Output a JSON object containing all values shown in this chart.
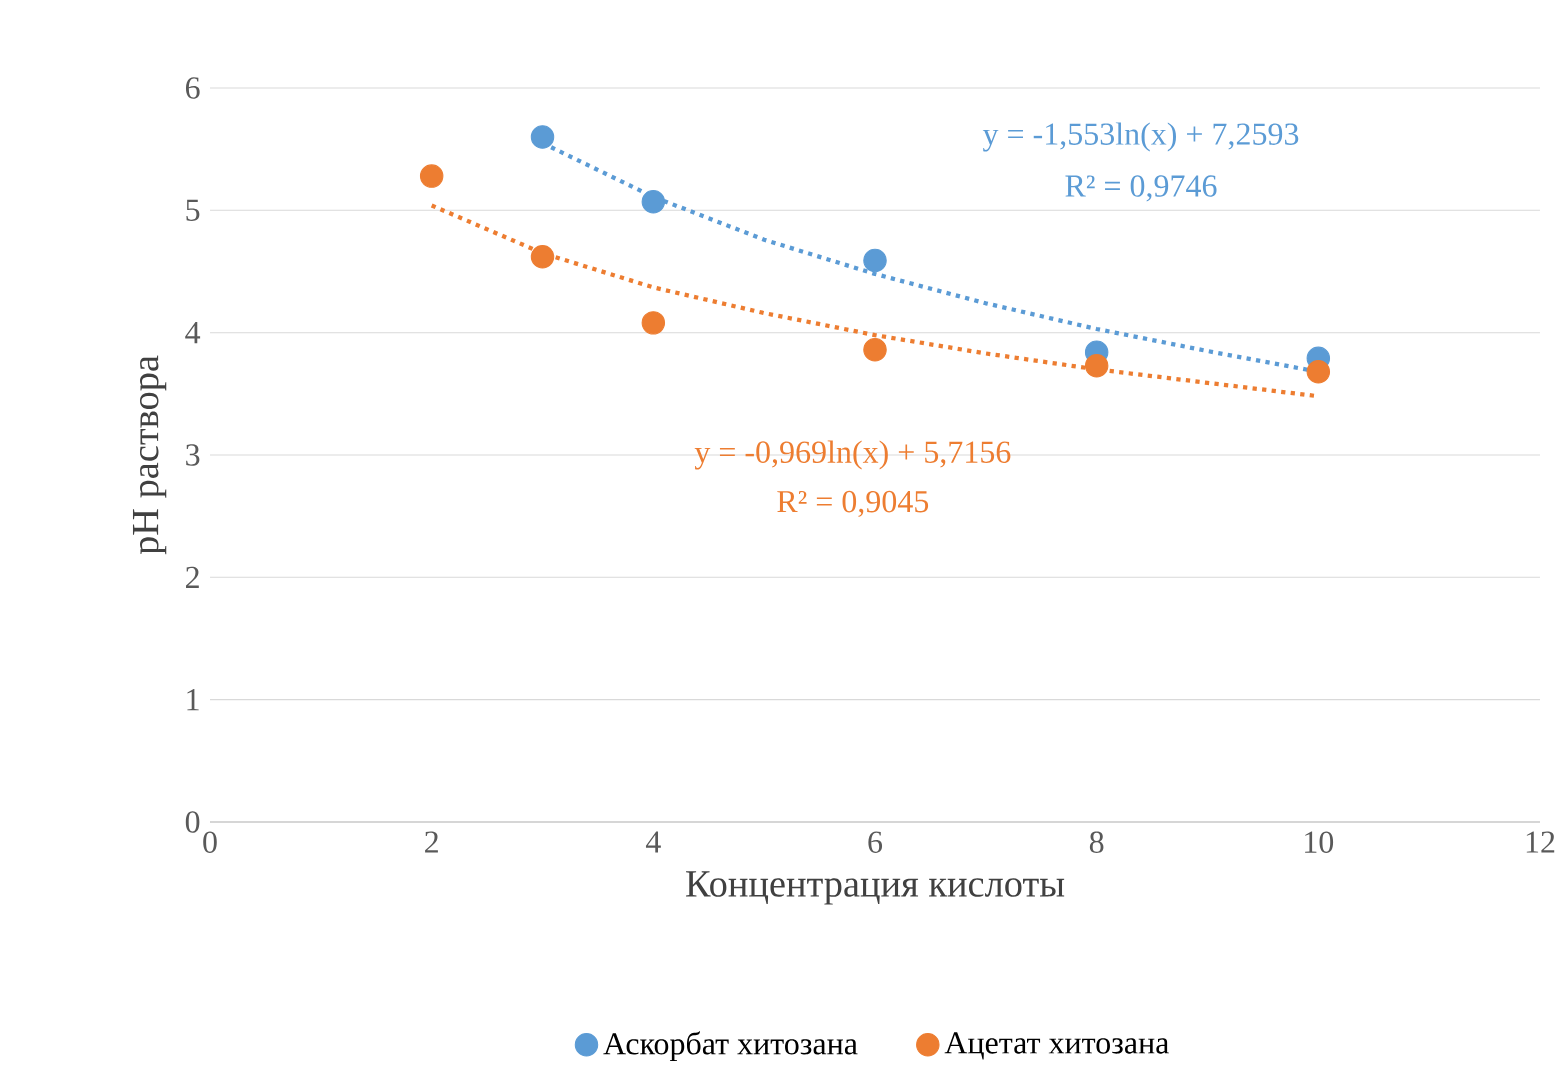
{
  "chart_data": {
    "type": "scatter",
    "xlabel": "Концентрация кислоты",
    "ylabel": "pH раствора",
    "xlim": [
      0,
      12
    ],
    "ylim": [
      0,
      6
    ],
    "xticks": [
      0,
      2,
      4,
      6,
      8,
      10,
      12
    ],
    "yticks": [
      0,
      1,
      2,
      3,
      4,
      5,
      6
    ],
    "grid": "y",
    "legend": "bottom",
    "marker": "circle",
    "series": [
      {
        "name": "Аскорбат хитозана",
        "color": "#5b9bd5",
        "x": [
          3,
          4,
          6,
          8,
          10
        ],
        "values": [
          5.6,
          5.07,
          4.59,
          3.84,
          3.79
        ]
      },
      {
        "name": "Ацетат хитозана",
        "color": "#ed7d31",
        "x": [
          2,
          3,
          4,
          6,
          8,
          10
        ],
        "values": [
          5.28,
          4.62,
          4.08,
          3.86,
          3.73,
          3.68
        ]
      },
      {
        "type": "line",
        "color": "#5b9bd5",
        "line_style": "dotted",
        "marker": "none",
        "x": [
          3,
          4,
          5,
          6,
          7,
          8,
          9,
          10
        ],
        "values": [
          5.55,
          5.11,
          4.76,
          4.48,
          4.24,
          4.03,
          3.85,
          3.68
        ]
      },
      {
        "type": "line",
        "color": "#ed7d31",
        "line_style": "dotted",
        "marker": "none",
        "x": [
          2,
          3,
          4,
          5,
          6,
          7,
          8,
          9,
          10
        ],
        "values": [
          5.04,
          4.65,
          4.37,
          4.16,
          3.98,
          3.83,
          3.7,
          3.59,
          3.48
        ]
      }
    ],
    "annotations": [
      "y = -1,553ln(x)  + 7,2593",
      "R² = 0,9746",
      "y = -0,969ln(x)  + 5,7156",
      "R² = 0,9045"
    ]
  }
}
